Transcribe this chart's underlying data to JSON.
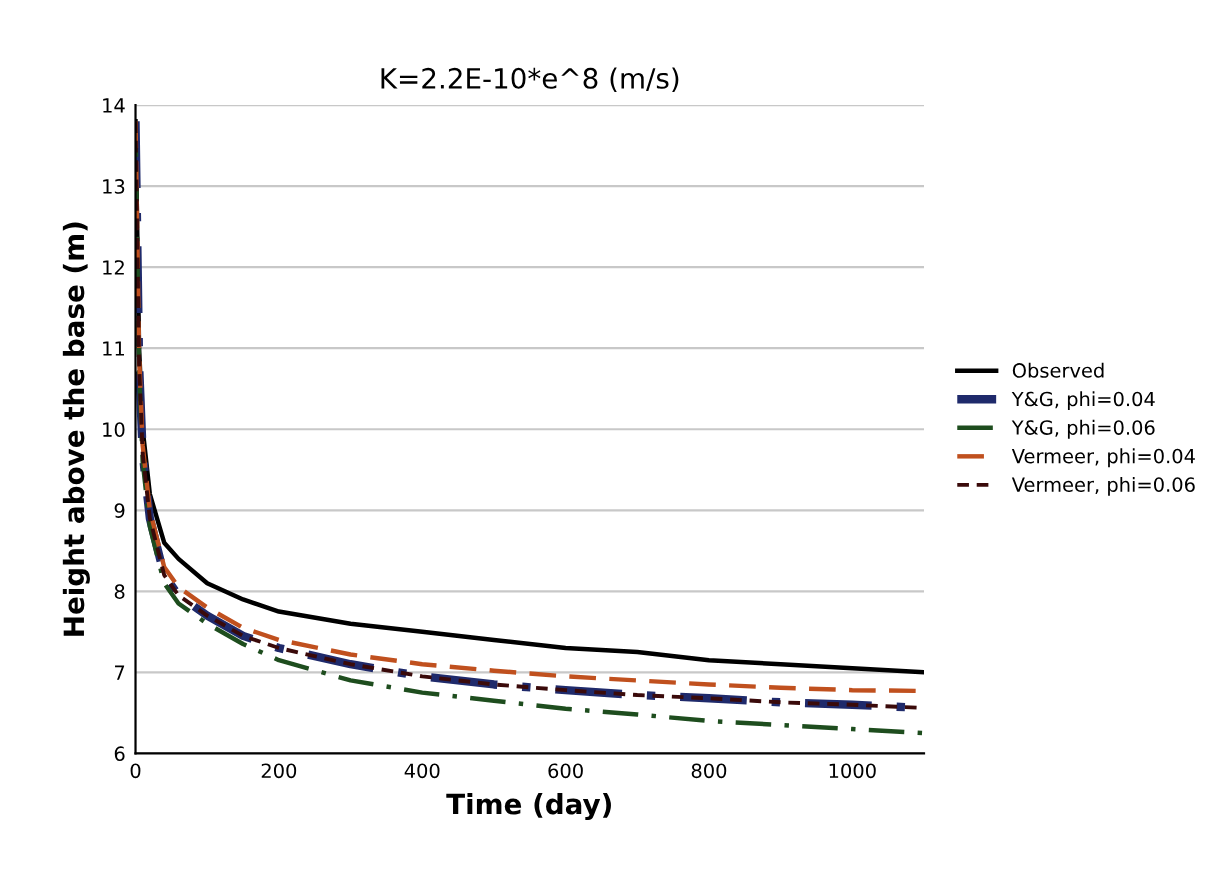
{
  "chart_data": {
    "type": "line",
    "title": "K=2.2E-10*e^8 (m/s)",
    "xlabel": "Time (day)",
    "ylabel": "Height above the base (m)",
    "x": [
      0,
      5,
      10,
      20,
      40,
      60,
      100,
      150,
      200,
      300,
      400,
      500,
      600,
      700,
      800,
      900,
      1000,
      1100
    ],
    "series": [
      {
        "name": "Observed",
        "color": "#000000",
        "line_style": "solid",
        "values": [
          13.8,
          11.0,
          10.0,
          9.2,
          8.6,
          8.4,
          8.1,
          7.9,
          7.75,
          7.6,
          7.5,
          7.4,
          7.3,
          7.25,
          7.15,
          7.1,
          7.05,
          7.0
        ]
      },
      {
        "name": "Y&G, phi=0.04",
        "color": "#1f2a6b",
        "line_style": "dashdot",
        "values": [
          13.8,
          10.8,
          9.7,
          8.9,
          8.2,
          7.95,
          7.7,
          7.45,
          7.3,
          7.1,
          6.95,
          6.85,
          6.78,
          6.72,
          6.68,
          6.63,
          6.6,
          6.56
        ]
      },
      {
        "name": "Y&G, phi=0.06",
        "color": "#1e4d1e",
        "line_style": "dashdot",
        "values": [
          13.8,
          10.7,
          9.6,
          8.8,
          8.1,
          7.85,
          7.6,
          7.35,
          7.15,
          6.9,
          6.75,
          6.65,
          6.55,
          6.48,
          6.4,
          6.35,
          6.3,
          6.25
        ]
      },
      {
        "name": "Vermeer, phi=0.04",
        "color": "#c0501e",
        "line_style": "dashed",
        "values": [
          13.8,
          10.9,
          9.8,
          9.0,
          8.3,
          8.05,
          7.8,
          7.55,
          7.4,
          7.22,
          7.1,
          7.02,
          6.95,
          6.9,
          6.85,
          6.81,
          6.78,
          6.77
        ]
      },
      {
        "name": "Vermeer, phi=0.06",
        "color": "#3a0a0a",
        "line_style": "dotted",
        "values": [
          13.8,
          10.8,
          9.7,
          8.9,
          8.2,
          7.95,
          7.7,
          7.45,
          7.3,
          7.1,
          6.95,
          6.85,
          6.78,
          6.72,
          6.68,
          6.63,
          6.6,
          6.56
        ]
      }
    ],
    "xlim": [
      0,
      1100
    ],
    "xticks": [
      0,
      200,
      400,
      600,
      800,
      1000
    ],
    "ylim": [
      6,
      14
    ],
    "yticks": [
      6,
      7,
      8,
      9,
      10,
      11,
      12,
      13,
      14
    ],
    "grid": "y",
    "legend": "right"
  }
}
